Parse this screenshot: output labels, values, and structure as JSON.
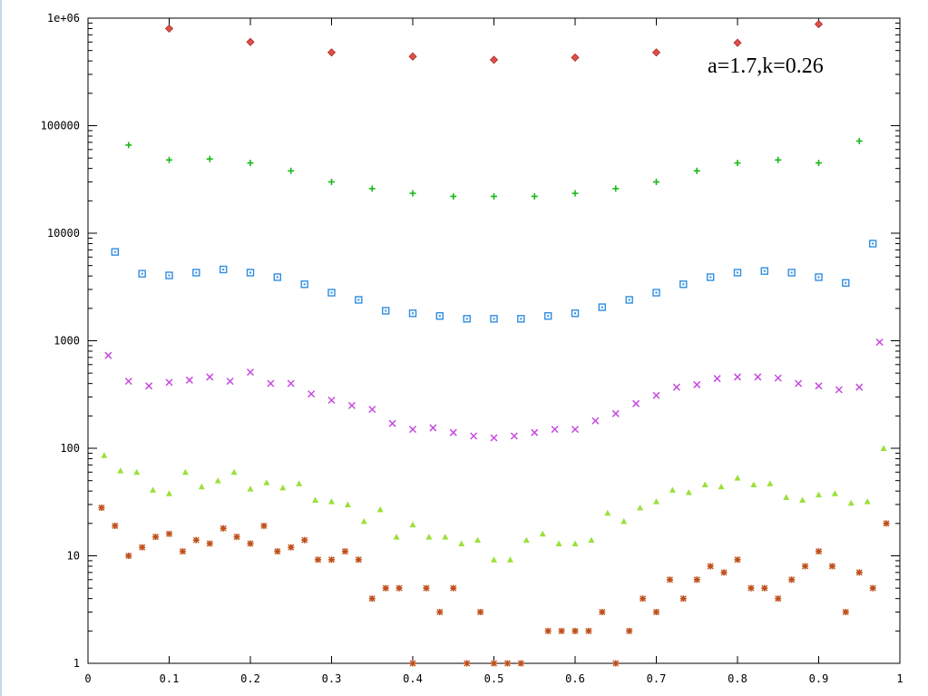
{
  "chart_data": {
    "type": "scatter",
    "title": "",
    "xlabel": "",
    "ylabel": "",
    "xlim": [
      0,
      1
    ],
    "ylim": [
      1,
      1000000
    ],
    "yscale": "log",
    "grid": false,
    "legend": "none",
    "annotation": "a=1.7,k=0.26",
    "x_ticks": [
      "0",
      "0.1",
      "0.2",
      "0.3",
      "0.4",
      "0.5",
      "0.6",
      "0.7",
      "0.8",
      "0.9",
      "1"
    ],
    "y_ticks": [
      {
        "value": 1,
        "label": "1"
      },
      {
        "value": 10,
        "label": "10"
      },
      {
        "value": 100,
        "label": "100"
      },
      {
        "value": 1000,
        "label": "1000"
      },
      {
        "value": 10000,
        "label": "10000"
      },
      {
        "value": 100000,
        "label": "100000"
      },
      {
        "value": 1000000,
        "label": "1e+06"
      }
    ],
    "series": [
      {
        "marker": "diamond",
        "color": "#e0504a",
        "x": [
          0.1,
          0.2,
          0.3,
          0.4,
          0.5,
          0.6,
          0.7,
          0.8,
          0.9
        ],
        "y": [
          800000,
          600000,
          480000,
          440000,
          410000,
          430000,
          480000,
          590000,
          880000
        ]
      },
      {
        "marker": "plus",
        "color": "#1ab81a",
        "x": [
          0.05,
          0.1,
          0.15,
          0.2,
          0.25,
          0.3,
          0.35,
          0.4,
          0.45,
          0.5,
          0.55,
          0.6,
          0.65,
          0.7,
          0.75,
          0.8,
          0.85,
          0.9,
          0.95
        ],
        "y": [
          66000,
          48000,
          49000,
          45000,
          38000,
          30000,
          26000,
          23500,
          22000,
          22000,
          22000,
          23500,
          26000,
          30000,
          38000,
          45000,
          48000,
          45000,
          72000
        ]
      },
      {
        "marker": "square",
        "color": "#2f8ee0",
        "x": [
          0.0333,
          0.0667,
          0.1,
          0.1333,
          0.1667,
          0.2,
          0.2333,
          0.2667,
          0.3,
          0.3333,
          0.3667,
          0.4,
          0.4333,
          0.4667,
          0.5,
          0.5333,
          0.5667,
          0.6,
          0.6333,
          0.6667,
          0.7,
          0.7333,
          0.7667,
          0.8,
          0.8333,
          0.8667,
          0.9,
          0.9333,
          0.9667
        ],
        "y": [
          6700,
          4200,
          4050,
          4300,
          4600,
          4300,
          3900,
          3350,
          2800,
          2400,
          1900,
          1800,
          1700,
          1600,
          1600,
          1600,
          1700,
          1800,
          2050,
          2400,
          2800,
          3350,
          3900,
          4300,
          4450,
          4300,
          3900,
          3450,
          8000
        ]
      },
      {
        "marker": "cross",
        "color": "#c64bde",
        "x": [
          0.025,
          0.05,
          0.075,
          0.1,
          0.125,
          0.15,
          0.175,
          0.2,
          0.225,
          0.25,
          0.275,
          0.3,
          0.325,
          0.35,
          0.375,
          0.4,
          0.425,
          0.45,
          0.475,
          0.5,
          0.525,
          0.55,
          0.575,
          0.6,
          0.625,
          0.65,
          0.675,
          0.7,
          0.725,
          0.75,
          0.775,
          0.8,
          0.825,
          0.85,
          0.875,
          0.9,
          0.925,
          0.95,
          0.975
        ],
        "y": [
          730,
          420,
          380,
          410,
          430,
          460,
          420,
          510,
          400,
          400,
          320,
          280,
          250,
          230,
          170,
          150,
          155,
          140,
          130,
          125,
          130,
          140,
          150,
          150,
          180,
          210,
          260,
          310,
          370,
          390,
          445,
          460,
          460,
          450,
          400,
          380,
          350,
          370,
          970
        ]
      },
      {
        "marker": "triangle",
        "color": "#9be03a",
        "x": [
          0.02,
          0.04,
          0.06,
          0.08,
          0.1,
          0.12,
          0.14,
          0.16,
          0.18,
          0.2,
          0.22,
          0.24,
          0.26,
          0.28,
          0.3,
          0.32,
          0.34,
          0.36,
          0.38,
          0.4,
          0.42,
          0.44,
          0.46,
          0.48,
          0.5,
          0.52,
          0.54,
          0.56,
          0.58,
          0.6,
          0.62,
          0.64,
          0.66,
          0.68,
          0.7,
          0.72,
          0.74,
          0.76,
          0.78,
          0.8,
          0.82,
          0.84,
          0.86,
          0.88,
          0.9,
          0.92,
          0.94,
          0.96,
          0.98
        ],
        "y": [
          86,
          62,
          60,
          41,
          38,
          60,
          44,
          50,
          60,
          42,
          48,
          43,
          47,
          33,
          32,
          30,
          21,
          27,
          15,
          19.5,
          15,
          15,
          13,
          14,
          9.2,
          9.2,
          14,
          16,
          13,
          13,
          14,
          25,
          21,
          28,
          32,
          41,
          39,
          46,
          44,
          53,
          46,
          47,
          35,
          33,
          37,
          38,
          31,
          32,
          100
        ]
      },
      {
        "marker": "star",
        "color": "#c0501a",
        "x": [
          0.0167,
          0.0333,
          0.05,
          0.0667,
          0.0833,
          0.1,
          0.1167,
          0.1333,
          0.15,
          0.1667,
          0.1833,
          0.2,
          0.2167,
          0.2333,
          0.25,
          0.2667,
          0.2833,
          0.3,
          0.3167,
          0.3333,
          0.35,
          0.3667,
          0.3833,
          0.4,
          0.4167,
          0.4333,
          0.45,
          0.4667,
          0.4833,
          0.5,
          0.5167,
          0.5333,
          0.5667,
          0.5833,
          0.6,
          0.6167,
          0.6333,
          0.65,
          0.6667,
          0.6833,
          0.7,
          0.7167,
          0.7333,
          0.75,
          0.7667,
          0.7833,
          0.8,
          0.8167,
          0.8333,
          0.85,
          0.8667,
          0.8833,
          0.9,
          0.9167,
          0.9333,
          0.95,
          0.9667,
          0.9833
        ],
        "y": [
          28,
          19,
          10,
          12,
          15,
          16,
          11,
          14,
          13,
          18,
          15,
          13,
          19,
          11,
          12,
          14,
          9.2,
          9.2,
          11,
          9.2,
          4,
          5,
          5,
          1,
          5,
          3,
          5,
          1,
          3,
          1,
          1,
          1,
          2,
          2,
          2,
          2,
          3,
          1,
          2,
          4,
          3,
          6,
          4,
          6,
          8,
          7,
          9.2,
          5,
          5,
          4,
          6,
          8,
          11,
          8,
          3,
          7,
          5,
          20
        ]
      }
    ]
  }
}
